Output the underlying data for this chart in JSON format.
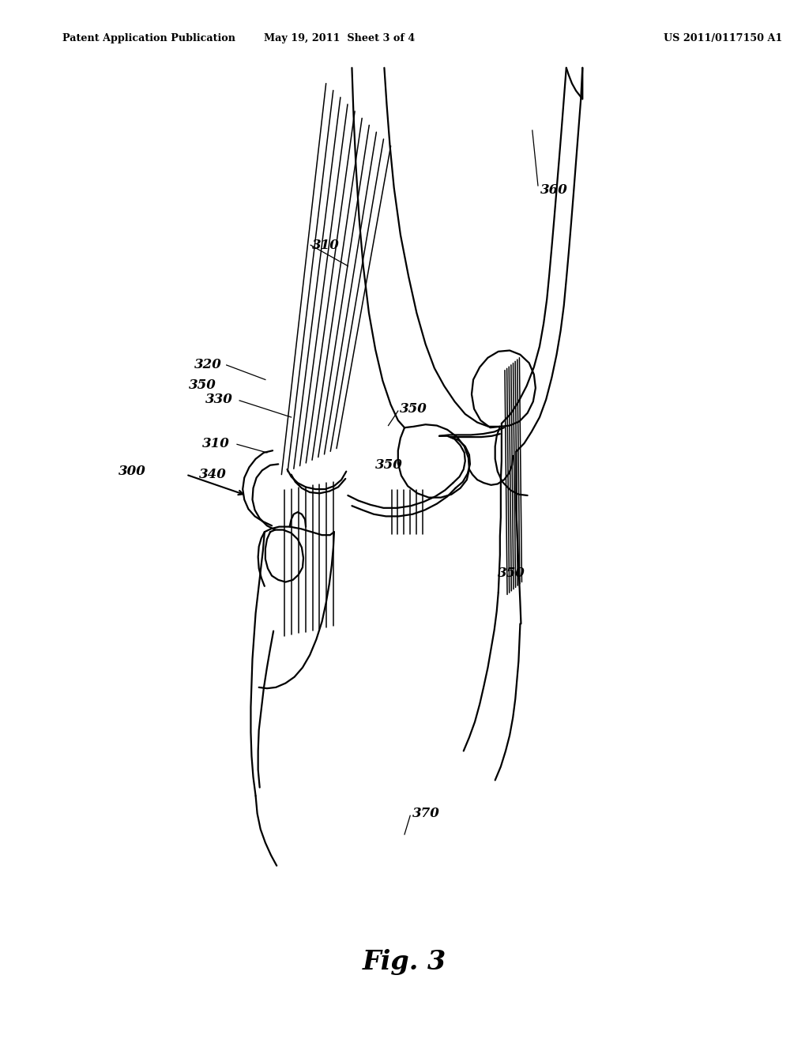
{
  "title": "Fig. 3",
  "header_left": "Patent Application Publication",
  "header_mid": "May 19, 2011  Sheet 3 of 4",
  "header_right": "US 2011/0117150 A1",
  "bg_color": "#ffffff",
  "line_color": "#000000",
  "figsize": [
    10.24,
    13.2
  ],
  "dpi": 100
}
